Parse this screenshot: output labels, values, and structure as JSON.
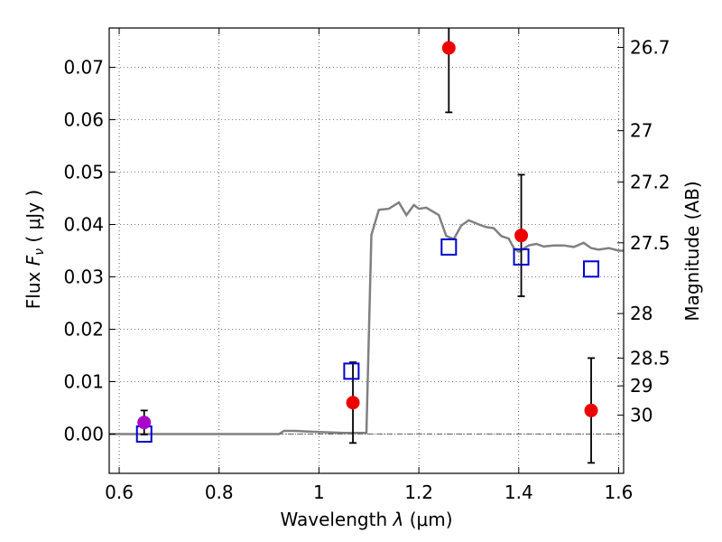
{
  "chart_data": {
    "type": "scatter",
    "xlabel_prefix": "Wavelength",
    "xlabel_symbol": "λ",
    "xlabel_unit": "(μm)",
    "ylabel_prefix": "Flux",
    "ylabel_symbol": "F",
    "ylabel_subscript": "ν",
    "ylabel_unit": "( μJy )",
    "y2label": "Magnitude (AB)",
    "xlim": [
      0.58,
      1.61
    ],
    "ylim": [
      -0.0075,
      0.0775
    ],
    "xticks": [
      0.6,
      0.8,
      1.0,
      1.2,
      1.4,
      1.6
    ],
    "xtick_labels": [
      "0.6",
      "0.8",
      "1",
      "1.2",
      "1.4",
      "1.6"
    ],
    "yticks": [
      0.0,
      0.01,
      0.02,
      0.03,
      0.04,
      0.05,
      0.06,
      0.07
    ],
    "ytick_labels": [
      "0.00",
      "0.01",
      "0.02",
      "0.03",
      "0.04",
      "0.05",
      "0.06",
      "0.07"
    ],
    "y2ticks": [
      {
        "flux": 0.0738,
        "label": "26.7"
      },
      {
        "flux": 0.0579,
        "label": "27"
      },
      {
        "flux": 0.0481,
        "label": "27.2"
      },
      {
        "flux": 0.0365,
        "label": "27.5"
      },
      {
        "flux": 0.023,
        "label": "28"
      },
      {
        "flux": 0.0145,
        "label": "28.5"
      },
      {
        "flux": 0.0092,
        "label": "29"
      },
      {
        "flux": 0.0036,
        "label": "30"
      }
    ],
    "grid": true,
    "zero_line": true,
    "series": [
      {
        "kind": "line",
        "color": "#808080",
        "x": [
          0.58,
          0.7,
          0.8,
          0.92,
          0.93,
          0.95,
          1.0,
          1.05,
          1.095,
          1.105,
          1.12,
          1.14,
          1.16,
          1.175,
          1.19,
          1.2,
          1.215,
          1.24,
          1.255,
          1.27,
          1.285,
          1.3,
          1.32,
          1.335,
          1.35,
          1.365,
          1.38,
          1.39,
          1.4,
          1.42,
          1.435,
          1.45,
          1.47,
          1.49,
          1.51,
          1.53,
          1.545,
          1.56,
          1.58,
          1.6,
          1.61
        ],
        "y": [
          0.0,
          0.0,
          0.0,
          0.0,
          0.0006,
          0.0006,
          0.0004,
          0.0002,
          0.0002,
          0.038,
          0.0428,
          0.043,
          0.0442,
          0.0418,
          0.0437,
          0.043,
          0.0432,
          0.0418,
          0.0378,
          0.0372,
          0.0398,
          0.0408,
          0.04,
          0.0395,
          0.0393,
          0.0378,
          0.0373,
          0.0355,
          0.0348,
          0.036,
          0.0363,
          0.0358,
          0.036,
          0.036,
          0.0357,
          0.0365,
          0.0355,
          0.0352,
          0.0355,
          0.035,
          0.035
        ]
      },
      {
        "kind": "points",
        "marker": "square",
        "color": "#0000cc",
        "x": [
          0.65,
          1.065,
          1.26,
          1.405,
          1.545
        ],
        "y": [
          0.0,
          0.012,
          0.0357,
          0.0338,
          0.0315
        ]
      },
      {
        "kind": "points",
        "marker": "circle",
        "color": "#ee0000",
        "x": [
          1.068,
          1.26,
          1.405,
          1.545
        ],
        "y": [
          0.006,
          0.0737,
          0.0379,
          0.0045
        ],
        "yerr": [
          0.0077,
          0.0123,
          0.0116,
          0.01
        ]
      },
      {
        "kind": "points",
        "marker": "circle",
        "color": "#aa00cc",
        "x": [
          0.65
        ],
        "y": [
          0.0022
        ],
        "yerr": [
          0.0023
        ]
      }
    ]
  }
}
